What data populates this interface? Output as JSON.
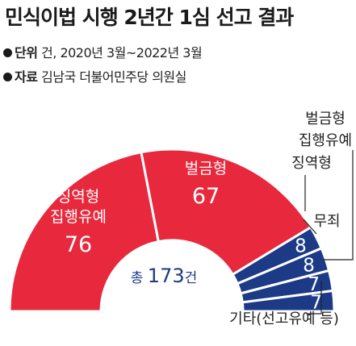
{
  "title": "민식이법 시행 2년간 1심 선고 결과",
  "meta": {
    "unit_label": "단위",
    "unit_value": "건, 2020년 3월~2022년 3월",
    "source_label": "자료",
    "source_value": "김남국 더불어민주당 의원실"
  },
  "colors": {
    "red": "#e8283c",
    "navy": "#1c3a86",
    "text_dark": "#222222"
  },
  "chart_data": {
    "type": "pie",
    "variant": "semicircle-donut",
    "total_label": "총",
    "total_value": 173,
    "total_unit": "건",
    "slices": [
      {
        "label": "징역형 집행유예",
        "value": 76,
        "color": "#e8283c"
      },
      {
        "label": "벌금형",
        "value": 67,
        "color": "#e8283c"
      },
      {
        "label": "징역형",
        "value": 8,
        "color": "#1c3a86"
      },
      {
        "label": "무죄",
        "value": 8,
        "color": "#1c3a86"
      },
      {
        "label": "벌금형 집행유예",
        "value": 7,
        "color": "#1c3a86"
      },
      {
        "label": "기타(선고유예 등)",
        "value": 7,
        "color": "#1c3a86"
      }
    ]
  }
}
